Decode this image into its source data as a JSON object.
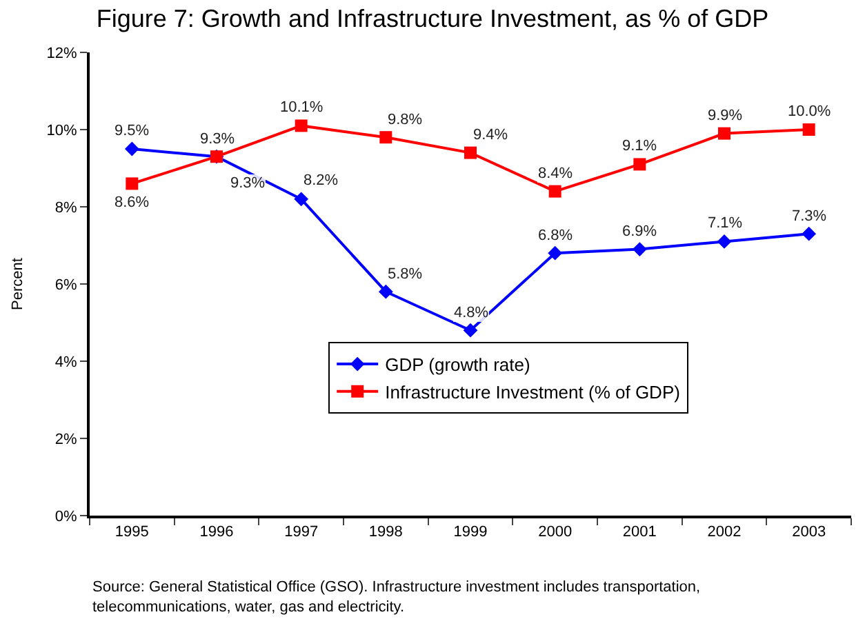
{
  "chart_data": {
    "type": "line",
    "title": "Figure 7: Growth and Infrastructure Investment, as % of GDP",
    "ylabel": "Percent",
    "categories": [
      "1995",
      "1996",
      "1997",
      "1998",
      "1999",
      "2000",
      "2001",
      "2002",
      "2003"
    ],
    "series": [
      {
        "name": "GDP (growth rate)",
        "color": "#0000ff",
        "marker": "diamond",
        "values": [
          9.5,
          9.3,
          8.2,
          5.8,
          4.8,
          6.8,
          6.9,
          7.1,
          7.3
        ],
        "value_labels": [
          "9.5%",
          "9.3%",
          "8.2%",
          "5.8%",
          "4.8%",
          "6.8%",
          "6.9%",
          "7.1%",
          "7.3%"
        ]
      },
      {
        "name": "Infrastructure Investment (% of GDP)",
        "color": "#ff0000",
        "marker": "square",
        "values": [
          8.6,
          9.3,
          10.1,
          9.8,
          9.4,
          8.4,
          9.1,
          9.9,
          10.0
        ],
        "value_labels": [
          "8.6%",
          "9.3%",
          "10.1%",
          "9.8%",
          "9.4%",
          "8.4%",
          "9.1%",
          "9.9%",
          "10.0%"
        ]
      }
    ],
    "ylim": [
      0,
      12
    ],
    "yticks": [
      {
        "value": 0,
        "label": "0%"
      },
      {
        "value": 2,
        "label": "2%"
      },
      {
        "value": 4,
        "label": "4%"
      },
      {
        "value": 6,
        "label": "6%"
      },
      {
        "value": 8,
        "label": "8%"
      },
      {
        "value": 10,
        "label": "10%"
      },
      {
        "value": 12,
        "label": "12%"
      }
    ],
    "legend": "bottom",
    "line_style": "solid",
    "annotations": [
      "Source: General Statistical Office (GSO). Infrastructure investment includes transportation, telecommunications, water, gas and electricity."
    ]
  }
}
